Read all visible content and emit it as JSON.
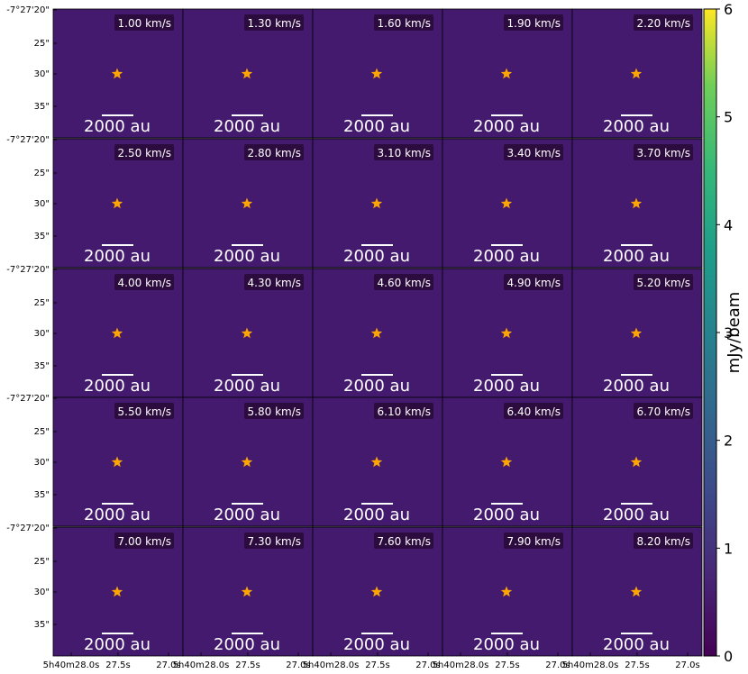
{
  "chart_data": {
    "type": "heatmap",
    "layout": {
      "rows": 5,
      "cols": 5
    },
    "panels": [
      {
        "velocity": "1.00 km/s",
        "emission": []
      },
      {
        "velocity": "1.30 km/s",
        "emission": []
      },
      {
        "velocity": "1.60 km/s",
        "emission": []
      },
      {
        "velocity": "1.90 km/s",
        "emission": []
      },
      {
        "velocity": "2.20 km/s",
        "emission": []
      },
      {
        "velocity": "2.50 km/s",
        "emission": []
      },
      {
        "velocity": "2.80 km/s",
        "emission": []
      },
      {
        "velocity": "3.10 km/s",
        "emission": []
      },
      {
        "velocity": "3.40 km/s",
        "emission": []
      },
      {
        "velocity": "3.70 km/s",
        "emission": []
      },
      {
        "velocity": "4.00 km/s",
        "emission": []
      },
      {
        "velocity": "4.30 km/s",
        "emission": []
      },
      {
        "velocity": "4.60 km/s",
        "emission": []
      },
      {
        "velocity": "4.90 km/s",
        "emission": []
      },
      {
        "velocity": "5.20 km/s",
        "emission": []
      },
      {
        "velocity": "5.50 km/s",
        "emission": []
      },
      {
        "velocity": "5.80 km/s",
        "emission": []
      },
      {
        "velocity": "6.10 km/s",
        "emission": []
      },
      {
        "velocity": "6.40 km/s",
        "emission": []
      },
      {
        "velocity": "6.70 km/s",
        "emission": []
      },
      {
        "velocity": "7.00 km/s",
        "emission": []
      },
      {
        "velocity": "7.30 km/s",
        "emission": []
      },
      {
        "velocity": "7.60 km/s",
        "emission": []
      },
      {
        "velocity": "7.90 km/s",
        "emission": []
      },
      {
        "velocity": "8.20 km/s",
        "emission": []
      }
    ],
    "scalebar_label": "2000 au",
    "y_tick_labels": [
      "-7°27'20\"",
      "25\"",
      "30\"",
      "35\""
    ],
    "x_tick_labels": [
      "5h40m28.0s",
      "27.5s",
      "27.0s"
    ],
    "colorbar": {
      "label": "mJy/beam",
      "ticks": [
        0,
        1,
        2,
        3,
        4,
        5,
        6
      ],
      "range": [
        0,
        6
      ],
      "colormap": "viridis"
    },
    "source_marker": "star",
    "colors": {
      "background": "#441a6e",
      "star": "#ffa500",
      "scalebar": "#ffffff",
      "label_box": "#2a0a3a"
    }
  }
}
